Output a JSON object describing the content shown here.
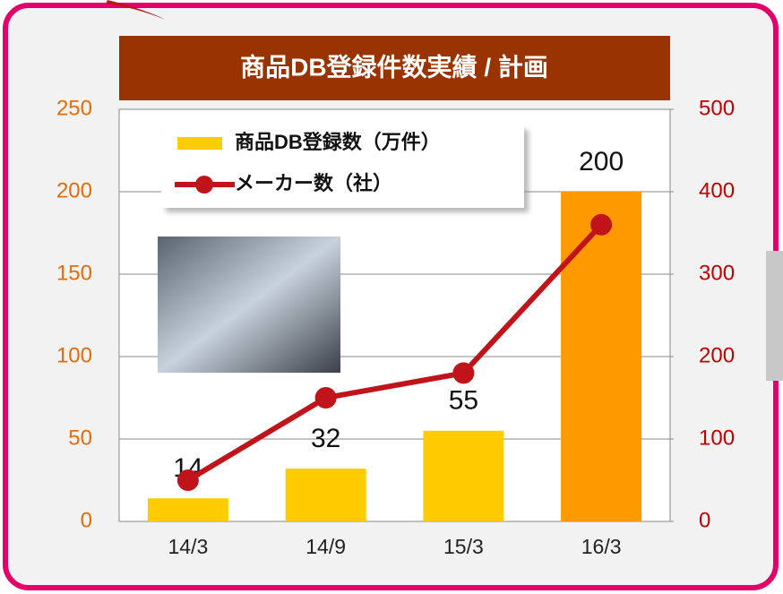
{
  "chart_data": {
    "type": "bar",
    "title": "商品DB登録件数実績 / 計画",
    "categories": [
      "14/3",
      "14/9",
      "15/3",
      "16/3"
    ],
    "series": [
      {
        "name": "商品DB登録数（万件）",
        "type": "bar",
        "color": "#FFCC00",
        "colors": [
          "#FFCC00",
          "#FFCC00",
          "#FFCC00",
          "#FF9900"
        ],
        "values": [
          14,
          32,
          55,
          200
        ]
      },
      {
        "name": "メーカー数（社）",
        "type": "line",
        "color": "#C0141A",
        "axis": "y2",
        "values": [
          50,
          150,
          180,
          360
        ]
      }
    ],
    "ylim": [
      0,
      250
    ],
    "yticks": [
      0,
      50,
      100,
      150,
      200,
      250
    ],
    "ytick_color": "#E46C0A",
    "y2lim": [
      0,
      500
    ],
    "y2ticks": [
      0,
      100,
      200,
      300,
      400,
      500
    ],
    "y2tick_color": "#C00000",
    "grid": true,
    "legend": "upper left"
  }
}
